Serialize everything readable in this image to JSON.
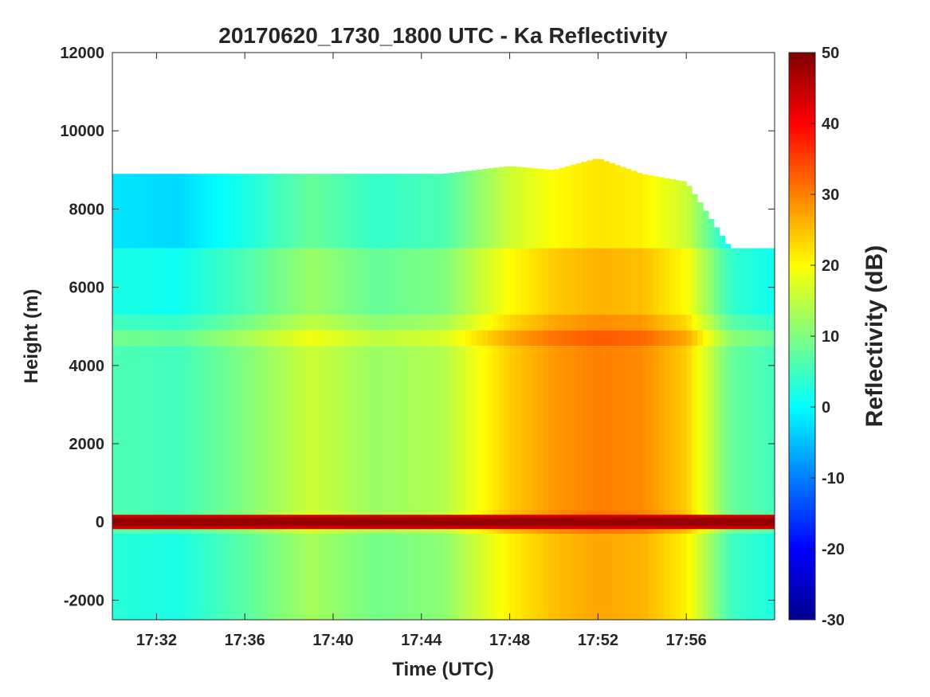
{
  "chart_data": {
    "type": "heatmap",
    "title": "20170620_1730_1800 UTC - Ka Reflectivity",
    "xlabel": "Time (UTC)",
    "ylabel": "Height (m)",
    "x_range": [
      "17:30",
      "18:00"
    ],
    "ylim": [
      -2500,
      12000
    ],
    "x_ticks": [
      "17:32",
      "17:36",
      "17:40",
      "17:44",
      "17:48",
      "17:52",
      "17:56"
    ],
    "y_ticks": [
      12000,
      10000,
      8000,
      6000,
      4000,
      2000,
      0,
      -2000
    ],
    "colorbar": {
      "label": "Reflectivity (dB)",
      "range": [
        -30,
        50
      ],
      "ticks": [
        50,
        40,
        30,
        20,
        10,
        0,
        -10,
        -20,
        -30
      ],
      "colormap": "jet"
    },
    "grid": false,
    "features": {
      "echo_top_height_m": 8900,
      "melting_layer_height_m": 4700,
      "surface_band_height_m": 0,
      "surface_band_value_db": 48,
      "max_echo_top_height_m": 9300
    },
    "profiles": [
      {
        "t": "17:30",
        "dbz": 4,
        "top": 8900
      },
      {
        "t": "17:33",
        "dbz": 3,
        "top": 8900
      },
      {
        "t": "17:36",
        "dbz": 8,
        "top": 8900
      },
      {
        "t": "17:39",
        "dbz": 14,
        "top": 8900
      },
      {
        "t": "17:42",
        "dbz": 10,
        "top": 8900
      },
      {
        "t": "17:45",
        "dbz": 12,
        "top": 8900
      },
      {
        "t": "17:48",
        "dbz": 22,
        "top": 9100
      },
      {
        "t": "17:50",
        "dbz": 26,
        "top": 9000
      },
      {
        "t": "17:52",
        "dbz": 28,
        "top": 9300
      },
      {
        "t": "17:54",
        "dbz": 27,
        "top": 8900
      },
      {
        "t": "17:56",
        "dbz": 22,
        "top": 8700
      },
      {
        "t": "17:58",
        "dbz": 6,
        "top": 7000
      },
      {
        "t": "18:00",
        "dbz": 3,
        "top": 7000
      }
    ]
  }
}
